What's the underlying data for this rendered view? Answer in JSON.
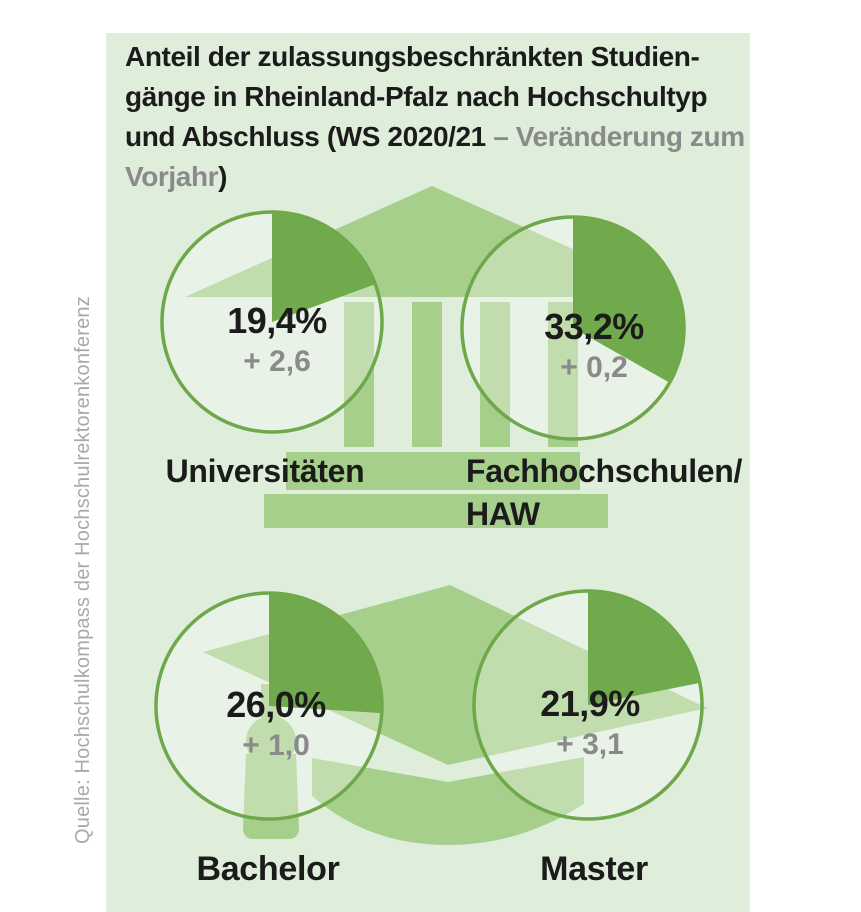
{
  "title": {
    "line1": "Anteil der zulassungsbeschränkten Studien-",
    "line2": "gänge in Rheinland-Pfalz nach Hochschultyp",
    "line3_black": "und Abschluss (WS 2020/21 ",
    "line3_gray": "– Veränderung zum",
    "line4_gray": "Vorjahr",
    "line4_black": ")"
  },
  "source_note": "Quelle: Hochschulkompass der Hochschulrektorenkonferenz",
  "colors": {
    "panel": "#dfeddb",
    "deco": "#a6cf8c",
    "wedge": "#70aa4c",
    "ring": "#6fa84a",
    "ink": "#1b1b1b",
    "muted": "#8a8a8a",
    "source": "#a9a9a9"
  },
  "chart_data": {
    "type": "pie",
    "title": "Anteil der zulassungsbeschränkten Studiengänge in Rheinland-Pfalz nach Hochschultyp und Abschluss (WS 2020/21 – Veränderung zum Vorjahr)",
    "unit": "%",
    "note": "Each circle is a single-slice pie starting at 12 o'clock, clockwise; gray value is change vs. previous year",
    "groups": [
      "Hochschultyp",
      "Abschluss"
    ],
    "items": [
      {
        "label": "Universitäten",
        "label_lines": [
          "Universitäten"
        ],
        "value": 19.4,
        "value_display": "19,4%",
        "delta": 2.6,
        "delta_display": "+ 2,6"
      },
      {
        "label": "Fachhochschulen/HAW",
        "label_lines": [
          "Fachhochschulen/",
          "HAW"
        ],
        "value": 33.2,
        "value_display": "33,2%",
        "delta": 0.2,
        "delta_display": "+ 0,2"
      },
      {
        "label": "Bachelor",
        "label_lines": [
          "Bachelor"
        ],
        "value": 26.0,
        "value_display": "26,0%",
        "delta": 1.0,
        "delta_display": "+ 1,0"
      },
      {
        "label": "Master",
        "label_lines": [
          "Master"
        ],
        "value": 21.9,
        "value_display": "21,9%",
        "delta": 3.1,
        "delta_display": "+ 3,1"
      }
    ]
  }
}
